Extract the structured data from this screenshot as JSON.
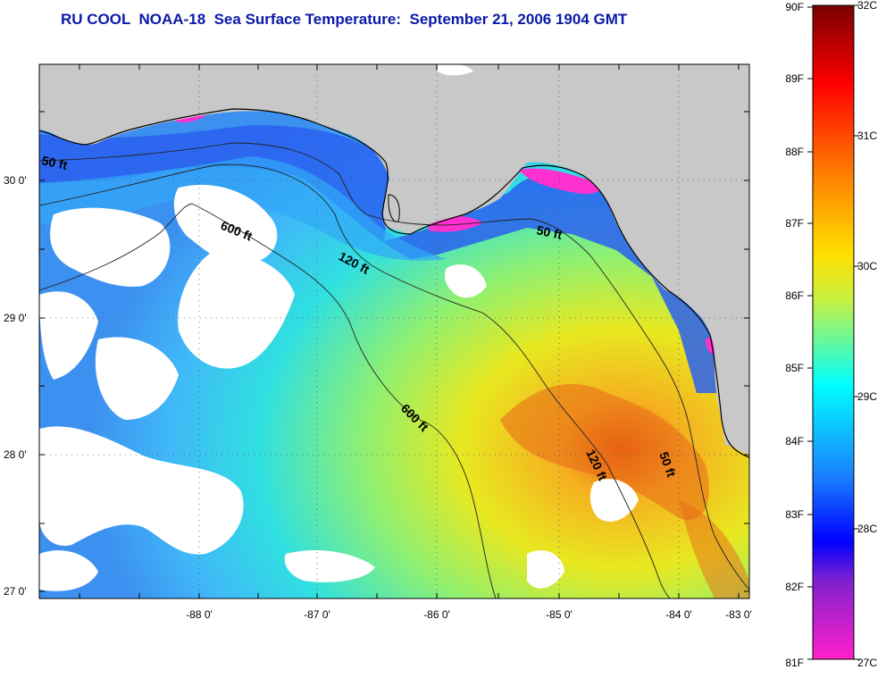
{
  "title": "RU COOL  NOAA-18  Sea Surface Temperature:  September 21, 2006 1904 GMT",
  "map": {
    "x_ticks": [
      "-88 0'",
      "-87 0'",
      "-86 0'",
      "-85 0'",
      "-84 0'",
      "-83 0'"
    ],
    "y_ticks": [
      "30 0'",
      "29 0'",
      "28 0'",
      "27 0'"
    ],
    "contour_labels": [
      "50 ft",
      "600 ft",
      "120 ft",
      "50 ft",
      "600 ft",
      "120 ft",
      "50 ft"
    ],
    "colors": {
      "land": "#c8c8c8",
      "cloud": "#ffffff",
      "coastline": "#000000",
      "grid": "#555555",
      "title": "#0a1aa8"
    }
  },
  "colorbar": {
    "fahrenheit_labels": [
      "90F",
      "89F",
      "88F",
      "87F",
      "86F",
      "85F",
      "84F",
      "83F",
      "82F",
      "81F"
    ],
    "celsius_labels": [
      "32C",
      "31C",
      "30C",
      "29C",
      "28C",
      "27C"
    ]
  }
}
